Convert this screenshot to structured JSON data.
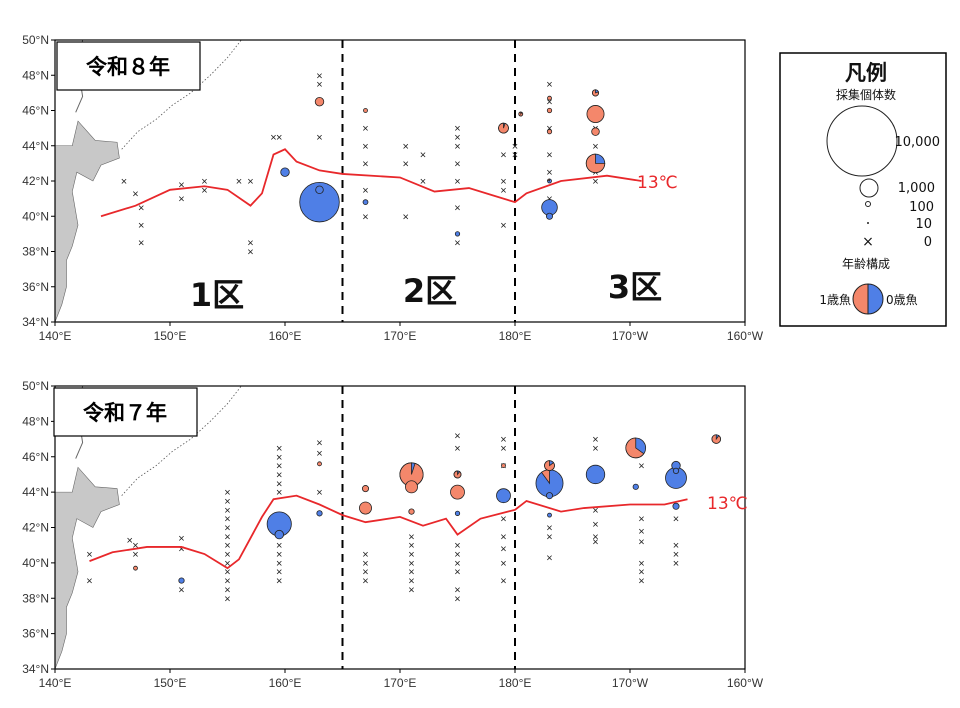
{
  "colors": {
    "one_year": "#f4876b",
    "zero_year": "#4f7fe6",
    "isotherm": "#e8282b",
    "land": "#c8c8c8",
    "frame": "#000000"
  },
  "axes": {
    "lat_labels": [
      "50°N",
      "48°N",
      "46°N",
      "44°N",
      "42°N",
      "40°N",
      "38°N",
      "36°N",
      "34°N"
    ],
    "lon_labels": [
      "140°E",
      "150°E",
      "160°E",
      "170°E",
      "180°E",
      "170°W",
      "160°W"
    ]
  },
  "panels": [
    {
      "badge": "令和８年",
      "zones": [
        "1区",
        "2区",
        "3区"
      ],
      "isotherm_label": "13℃",
      "isotherm": [
        [
          144,
          40
        ],
        [
          147,
          40.6
        ],
        [
          150,
          41.5
        ],
        [
          153,
          41.7
        ],
        [
          155,
          41.5
        ],
        [
          157,
          40.6
        ],
        [
          158,
          41.3
        ],
        [
          159,
          43.5
        ],
        [
          160,
          43.8
        ],
        [
          161,
          43.1
        ],
        [
          163,
          42.6
        ],
        [
          165,
          42.4
        ],
        [
          170,
          42.2
        ],
        [
          173,
          41.4
        ],
        [
          176,
          41.6
        ],
        [
          178,
          41.2
        ],
        [
          180,
          40.8
        ],
        [
          181,
          41.3
        ],
        [
          184,
          42.0
        ],
        [
          188,
          42.3
        ],
        [
          191,
          42.0
        ]
      ],
      "crosses": [
        [
          146,
          42
        ],
        [
          147,
          41.3
        ],
        [
          147.5,
          40.5
        ],
        [
          147.5,
          39.5
        ],
        [
          147.5,
          38.5
        ],
        [
          151,
          41.8
        ],
        [
          151,
          41
        ],
        [
          153,
          42
        ],
        [
          153,
          41.5
        ],
        [
          156,
          42
        ],
        [
          157,
          42
        ],
        [
          157,
          38.5
        ],
        [
          157,
          38
        ],
        [
          159,
          44.5
        ],
        [
          159.5,
          44.5
        ],
        [
          163,
          48
        ],
        [
          163,
          47.5
        ],
        [
          163,
          44.5
        ],
        [
          163,
          40
        ],
        [
          167,
          45
        ],
        [
          167,
          44
        ],
        [
          167,
          43
        ],
        [
          167,
          41.5
        ],
        [
          167,
          40
        ],
        [
          170.5,
          44
        ],
        [
          170.5,
          43
        ],
        [
          170.5,
          40
        ],
        [
          172,
          43.5
        ],
        [
          172,
          42
        ],
        [
          175,
          45
        ],
        [
          175,
          44.5
        ],
        [
          175,
          44
        ],
        [
          175,
          43
        ],
        [
          175,
          42
        ],
        [
          175,
          40.5
        ],
        [
          175,
          38.5
        ],
        [
          179,
          43.5
        ],
        [
          179,
          42
        ],
        [
          179,
          41.5
        ],
        [
          179,
          39.5
        ],
        [
          180,
          44
        ],
        [
          180,
          43.5
        ],
        [
          183,
          47.5
        ],
        [
          183,
          46.5
        ],
        [
          183,
          45
        ],
        [
          183,
          43.5
        ],
        [
          183,
          42.5
        ],
        [
          183,
          41
        ],
        [
          187,
          45
        ],
        [
          187,
          44
        ],
        [
          187,
          42.5
        ],
        [
          187,
          42
        ]
      ],
      "circles": [
        {
          "lon": 163,
          "lat": 46.5,
          "count": 150,
          "f1": 1.0
        },
        {
          "lon": 167,
          "lat": 46.0,
          "count": 30,
          "f1": 1.0
        },
        {
          "lon": 179,
          "lat": 45.0,
          "count": 200,
          "f1": 0.95
        },
        {
          "lon": 180.5,
          "lat": 45.8,
          "count": 8,
          "f1": 0.9
        },
        {
          "lon": 183,
          "lat": 46.7,
          "count": 20,
          "f1": 1.0
        },
        {
          "lon": 183,
          "lat": 46.0,
          "count": 40,
          "f1": 1.0
        },
        {
          "lon": 183,
          "lat": 44.8,
          "count": 40,
          "f1": 1.0
        },
        {
          "lon": 187,
          "lat": 47.0,
          "count": 80,
          "f1": 0.8
        },
        {
          "lon": 187,
          "lat": 45.8,
          "count": 600,
          "f1": 1.0
        },
        {
          "lon": 187,
          "lat": 44.8,
          "count": 120,
          "f1": 1.0
        },
        {
          "lon": 187,
          "lat": 43.0,
          "count": 700,
          "f1": 0.75
        },
        {
          "lon": 160,
          "lat": 42.5,
          "count": 150,
          "f1": 0.0
        },
        {
          "lon": 163,
          "lat": 40.8,
          "count": 3200,
          "f1": 0.0
        },
        {
          "lon": 163,
          "lat": 41.5,
          "count": 120,
          "f1": 0.0
        },
        {
          "lon": 167,
          "lat": 40.8,
          "count": 50,
          "f1": 0.0
        },
        {
          "lon": 175,
          "lat": 39.0,
          "count": 40,
          "f1": 0.0
        },
        {
          "lon": 183,
          "lat": 40.5,
          "count": 500,
          "f1": 0.0
        },
        {
          "lon": 183,
          "lat": 40.0,
          "count": 80,
          "f1": 0.0
        },
        {
          "lon": 183,
          "lat": 42.0,
          "count": 30,
          "f1": 0.2
        }
      ]
    },
    {
      "badge": "令和７年",
      "zones": [],
      "isotherm_label": "13℃",
      "isotherm": [
        [
          143,
          40.1
        ],
        [
          145,
          40.6
        ],
        [
          148,
          40.9
        ],
        [
          151,
          40.9
        ],
        [
          153,
          40.5
        ],
        [
          155,
          39.7
        ],
        [
          156,
          40.2
        ],
        [
          158,
          42.6
        ],
        [
          159,
          43.6
        ],
        [
          161,
          43.8
        ],
        [
          163,
          43.3
        ],
        [
          165,
          42.7
        ],
        [
          167,
          42.3
        ],
        [
          170,
          42.6
        ],
        [
          172,
          42.1
        ],
        [
          174,
          42.5
        ],
        [
          175,
          41.6
        ],
        [
          177,
          42.5
        ],
        [
          180,
          43.0
        ],
        [
          181,
          43.5
        ],
        [
          184,
          42.9
        ],
        [
          186,
          43.1
        ],
        [
          190,
          43.3
        ],
        [
          193,
          43.3
        ],
        [
          195,
          43.6
        ]
      ],
      "crosses": [
        [
          143,
          40.5
        ],
        [
          143,
          39
        ],
        [
          146.5,
          41.3
        ],
        [
          147,
          41
        ],
        [
          147,
          40.5
        ],
        [
          151,
          41.4
        ],
        [
          151,
          40.8
        ],
        [
          151,
          38.5
        ],
        [
          155,
          44
        ],
        [
          155,
          43.5
        ],
        [
          155,
          43
        ],
        [
          155,
          42.5
        ],
        [
          155,
          42
        ],
        [
          155,
          41.5
        ],
        [
          155,
          41
        ],
        [
          155,
          40.5
        ],
        [
          155,
          40
        ],
        [
          155,
          39.5
        ],
        [
          155,
          39
        ],
        [
          155,
          38.5
        ],
        [
          155,
          38
        ],
        [
          159.5,
          46.5
        ],
        [
          159.5,
          46
        ],
        [
          159.5,
          45.5
        ],
        [
          159.5,
          45
        ],
        [
          159.5,
          44.5
        ],
        [
          159.5,
          44
        ],
        [
          159.5,
          41
        ],
        [
          159.5,
          40.5
        ],
        [
          159.5,
          40
        ],
        [
          159.5,
          39.5
        ],
        [
          159.5,
          39
        ],
        [
          163,
          46.8
        ],
        [
          163,
          46.2
        ],
        [
          163,
          44
        ],
        [
          167,
          40.5
        ],
        [
          167,
          40
        ],
        [
          167,
          39.5
        ],
        [
          167,
          39
        ],
        [
          171,
          41.5
        ],
        [
          171,
          41
        ],
        [
          171,
          40.5
        ],
        [
          171,
          40
        ],
        [
          171,
          39.5
        ],
        [
          171,
          39
        ],
        [
          171,
          38.5
        ],
        [
          175,
          47.2
        ],
        [
          175,
          46.5
        ],
        [
          175,
          41
        ],
        [
          175,
          40.5
        ],
        [
          175,
          40
        ],
        [
          175,
          39.5
        ],
        [
          175,
          38.5
        ],
        [
          175,
          38
        ],
        [
          179,
          47
        ],
        [
          179,
          46.5
        ],
        [
          179,
          45.5
        ],
        [
          179,
          42.5
        ],
        [
          179,
          41.5
        ],
        [
          179,
          40.8
        ],
        [
          179,
          40
        ],
        [
          179,
          39
        ],
        [
          183,
          44
        ],
        [
          183,
          42
        ],
        [
          183,
          41.5
        ],
        [
          183,
          40.3
        ],
        [
          187,
          47
        ],
        [
          187,
          46.5
        ],
        [
          187,
          43
        ],
        [
          187,
          42.2
        ],
        [
          187,
          41.5
        ],
        [
          187,
          41.2
        ],
        [
          191,
          46.5
        ],
        [
          191,
          45.5
        ],
        [
          191,
          42.5
        ],
        [
          191,
          41.8
        ],
        [
          191,
          41.2
        ],
        [
          191,
          40
        ],
        [
          191,
          39.5
        ],
        [
          191,
          39
        ],
        [
          194,
          42.5
        ],
        [
          194,
          41
        ],
        [
          194,
          40.5
        ],
        [
          194,
          40
        ]
      ],
      "circles": [
        {
          "lon": 147,
          "lat": 39.7,
          "count": 8,
          "f1": 1.0
        },
        {
          "lon": 151,
          "lat": 39.0,
          "count": 60,
          "f1": 0.0
        },
        {
          "lon": 159.5,
          "lat": 42.2,
          "count": 1200,
          "f1": 0.0
        },
        {
          "lon": 159.5,
          "lat": 41.6,
          "count": 150,
          "f1": 0.0
        },
        {
          "lon": 163,
          "lat": 45.6,
          "count": 30,
          "f1": 1.0
        },
        {
          "lon": 163,
          "lat": 42.8,
          "count": 60,
          "f1": 0.0
        },
        {
          "lon": 167,
          "lat": 44.2,
          "count": 80,
          "f1": 1.0
        },
        {
          "lon": 167,
          "lat": 43.1,
          "count": 300,
          "f1": 1.0
        },
        {
          "lon": 171,
          "lat": 45.0,
          "count": 1100,
          "f1": 0.95
        },
        {
          "lon": 171,
          "lat": 44.3,
          "count": 300,
          "f1": 1.0
        },
        {
          "lon": 171,
          "lat": 42.9,
          "count": 60,
          "f1": 1.0
        },
        {
          "lon": 175,
          "lat": 44.0,
          "count": 400,
          "f1": 1.0
        },
        {
          "lon": 175,
          "lat": 45.0,
          "count": 100,
          "f1": 0.9
        },
        {
          "lon": 175,
          "lat": 42.8,
          "count": 40,
          "f1": 0.0
        },
        {
          "lon": 179,
          "lat": 45.5,
          "count": 20,
          "f1": 1.0
        },
        {
          "lon": 179,
          "lat": 43.8,
          "count": 400,
          "f1": 0.0
        },
        {
          "lon": 183,
          "lat": 44.5,
          "count": 1500,
          "f1": 0.1
        },
        {
          "lon": 183,
          "lat": 45.5,
          "count": 200,
          "f1": 0.85
        },
        {
          "lon": 183,
          "lat": 43.8,
          "count": 80,
          "f1": 0.0
        },
        {
          "lon": 183,
          "lat": 42.7,
          "count": 20,
          "f1": 0.0
        },
        {
          "lon": 187,
          "lat": 45.0,
          "count": 700,
          "f1": 0.0
        },
        {
          "lon": 190.5,
          "lat": 46.5,
          "count": 800,
          "f1": 0.65
        },
        {
          "lon": 190.5,
          "lat": 44.3,
          "count": 60,
          "f1": 0.0
        },
        {
          "lon": 194,
          "lat": 45.5,
          "count": 150,
          "f1": 0.0
        },
        {
          "lon": 194,
          "lat": 44.8,
          "count": 900,
          "f1": 0.0
        },
        {
          "lon": 194,
          "lat": 43.2,
          "count": 80,
          "f1": 0.0
        },
        {
          "lon": 194,
          "lat": 45.2,
          "count": 60,
          "f1": 0.0
        },
        {
          "lon": 197.5,
          "lat": 47.0,
          "count": 150,
          "f1": 0.9
        }
      ]
    }
  ],
  "legend": {
    "title": "凡例",
    "subtitle": "採集個体数",
    "counts": [
      "10,000",
      "1,000",
      "100",
      "10",
      "0"
    ],
    "composition_title": "年齢構成",
    "age1_label": "1歳魚",
    "age0_label": "0歳魚"
  }
}
